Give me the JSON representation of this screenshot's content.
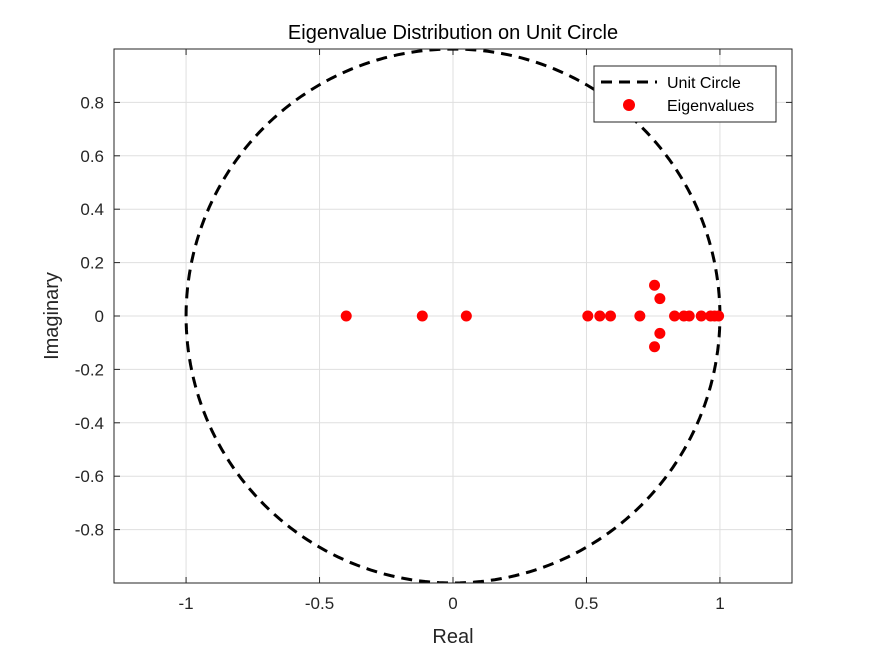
{
  "chart_data": {
    "type": "scatter",
    "title": "Eigenvalue Distribution on Unit Circle",
    "xlabel": "Real",
    "ylabel": "Imaginary",
    "xlim": [
      -1.27,
      1.27
    ],
    "ylim": [
      -1.0,
      1.0
    ],
    "xticks": [
      -1,
      -0.5,
      0,
      0.5,
      1
    ],
    "xtick_labels": [
      "-1",
      "-0.5",
      "0",
      "0.5",
      "1"
    ],
    "yticks": [
      -0.8,
      -0.6,
      -0.4,
      -0.2,
      0,
      0.2,
      0.4,
      0.6,
      0.8
    ],
    "ytick_labels": [
      "-0.8",
      "-0.6",
      "-0.4",
      "-0.2",
      "0",
      "0.2",
      "0.4",
      "0.6",
      "0.8"
    ],
    "grid": true,
    "legend_position": "top-right",
    "series": [
      {
        "name": "Unit Circle",
        "kind": "line",
        "style": "dashed",
        "color": "#000000",
        "curve": "unit-circle"
      },
      {
        "name": "Eigenvalues",
        "kind": "scatter",
        "marker": "circle",
        "color": "#ff0000",
        "points": [
          {
            "x": -0.4,
            "y": 0.0
          },
          {
            "x": -0.115,
            "y": 0.0
          },
          {
            "x": 0.05,
            "y": 0.0
          },
          {
            "x": 0.505,
            "y": 0.0
          },
          {
            "x": 0.55,
            "y": 0.0
          },
          {
            "x": 0.59,
            "y": 0.0
          },
          {
            "x": 0.7,
            "y": 0.0
          },
          {
            "x": 0.755,
            "y": 0.115
          },
          {
            "x": 0.755,
            "y": -0.115
          },
          {
            "x": 0.775,
            "y": 0.065
          },
          {
            "x": 0.775,
            "y": -0.065
          },
          {
            "x": 0.83,
            "y": 0.0
          },
          {
            "x": 0.865,
            "y": 0.0
          },
          {
            "x": 0.885,
            "y": 0.0
          },
          {
            "x": 0.93,
            "y": 0.0
          },
          {
            "x": 0.965,
            "y": 0.0
          },
          {
            "x": 0.98,
            "y": 0.0
          },
          {
            "x": 0.995,
            "y": 0.0
          }
        ]
      }
    ]
  }
}
